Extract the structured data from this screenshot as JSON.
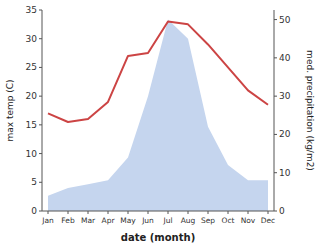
{
  "chart_data": {
    "type": "line",
    "categories": [
      "Jan",
      "Feb",
      "Mar",
      "Apr",
      "May",
      "Jun",
      "Jul",
      "Aug",
      "Sep",
      "Oct",
      "Nov",
      "Dec"
    ],
    "xlabel": "date (month)",
    "ylabel": "max temp (C)",
    "y2label": "med. precipitation (kg/m2)",
    "series": [
      {
        "type": "area",
        "axis": "y2",
        "color": "#c5d5ee",
        "values": [
          4,
          6,
          7,
          8,
          14,
          30,
          50,
          45,
          22,
          12,
          8,
          8
        ]
      },
      {
        "type": "line",
        "color": "#cc4444",
        "values": [
          17,
          15.5,
          16,
          19,
          27,
          27.5,
          33,
          32.5,
          29,
          25,
          21,
          18.5
        ]
      }
    ],
    "ylim": [
      0,
      35
    ],
    "yticks": [
      0,
      5,
      10,
      15,
      20,
      25,
      30,
      35
    ],
    "y2lim": [
      0,
      52.5
    ],
    "y2ticks": [
      0,
      10,
      20,
      30,
      40,
      50
    ],
    "grid": false
  }
}
